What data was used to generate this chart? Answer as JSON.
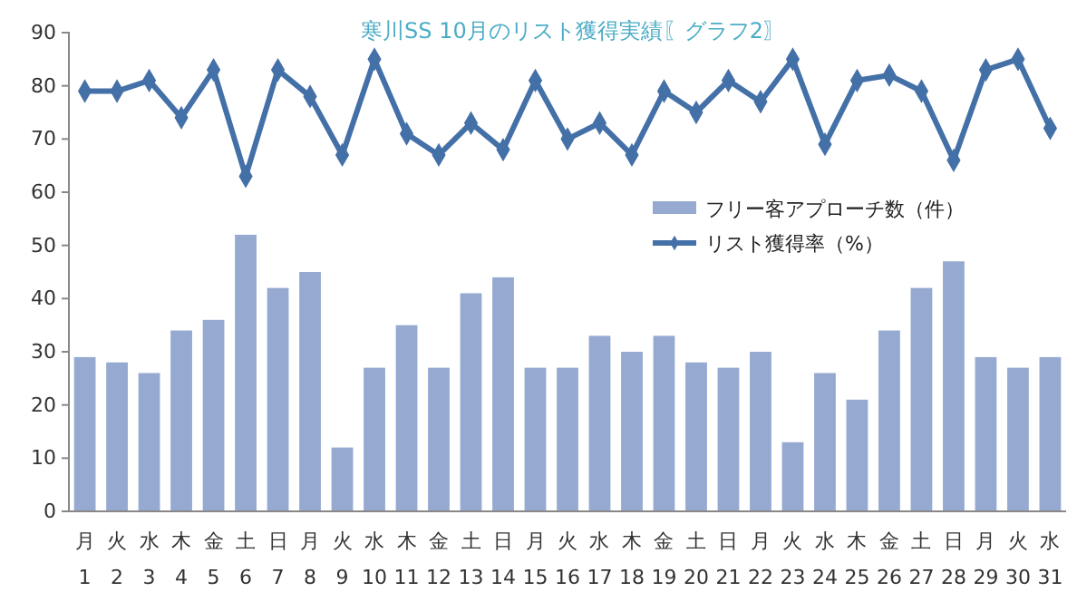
{
  "chart_data": {
    "type": "bar",
    "title": "寒川SS 10月のリスト獲得実績〖グラフ2〗",
    "categories": [
      "月\n1",
      "火\n2",
      "水\n3",
      "木\n4",
      "金\n5",
      "土\n6",
      "日\n7",
      "月\n8",
      "火\n9",
      "水\n10",
      "木\n11",
      "金\n12",
      "土\n13",
      "日\n14",
      "月\n15",
      "火\n16",
      "水\n17",
      "木\n18",
      "金\n19",
      "土\n20",
      "日\n21",
      "月\n22",
      "火\n23",
      "水\n24",
      "木\n25",
      "金\n26",
      "土\n27",
      "日\n28",
      "月\n29",
      "火\n30",
      "水\n31"
    ],
    "series": [
      {
        "name": "フリー客アプローチ数（件）",
        "color": "#95a9d1",
        "values": [
          29,
          28,
          26,
          34,
          36,
          52,
          42,
          45,
          12,
          27,
          35,
          27,
          41,
          44,
          27,
          27,
          33,
          30,
          33,
          28,
          27,
          30,
          13,
          26,
          21,
          34,
          42,
          47,
          29,
          27,
          29
        ]
      },
      {
        "name": "リスト獲得率（%）",
        "type": "line",
        "color": "#4470a8",
        "marker": "diamond",
        "values": [
          79,
          79,
          81,
          74,
          83,
          63,
          83,
          78,
          67,
          85,
          71,
          67,
          73,
          68,
          81,
          70,
          73,
          67,
          79,
          75,
          81,
          77,
          85,
          69,
          81,
          82,
          79,
          66,
          83,
          85,
          72
        ]
      }
    ],
    "ylim": [
      0,
      90
    ],
    "yticks": [
      0,
      10,
      20,
      30,
      40,
      50,
      60,
      70,
      80,
      90
    ],
    "grid": false,
    "legend": "right"
  }
}
